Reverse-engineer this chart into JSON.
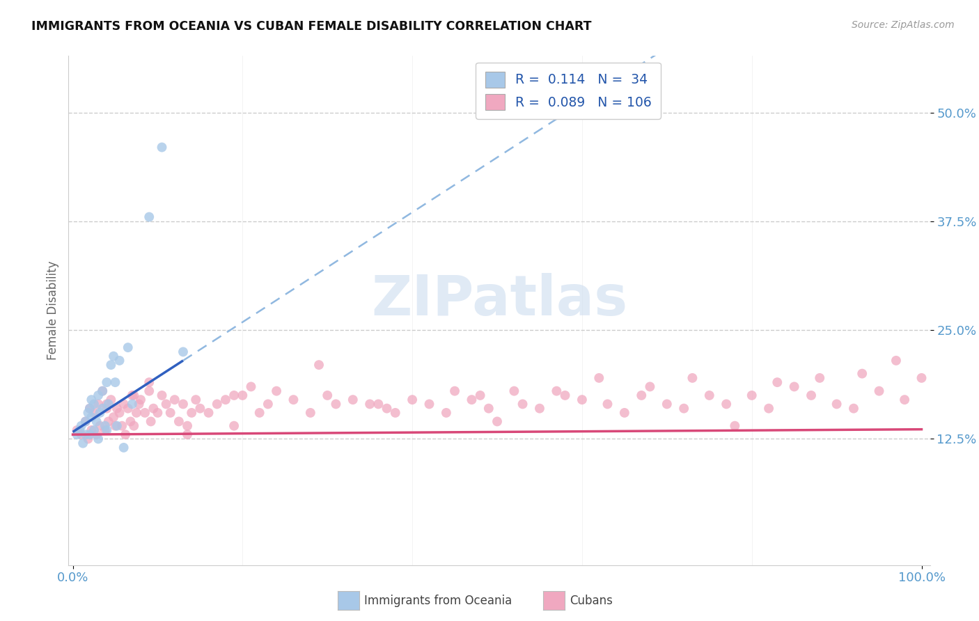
{
  "title": "IMMIGRANTS FROM OCEANIA VS CUBAN FEMALE DISABILITY CORRELATION CHART",
  "source": "Source: ZipAtlas.com",
  "ylabel": "Female Disability",
  "ytick_labels": [
    "12.5%",
    "25.0%",
    "37.5%",
    "50.0%"
  ],
  "ytick_values": [
    0.125,
    0.25,
    0.375,
    0.5
  ],
  "xlim": [
    -0.005,
    1.01
  ],
  "ylim": [
    -0.02,
    0.565
  ],
  "r_oceania": 0.114,
  "n_oceania": 34,
  "r_cubans": 0.089,
  "n_cubans": 106,
  "color_oceania": "#a8c8e8",
  "color_cubans": "#f0a8c0",
  "line_color_oceania": "#3060c0",
  "line_color_oceania_dash": "#90b8e0",
  "line_color_cubans": "#d84878",
  "legend_label_oceania": "Immigrants from Oceania",
  "legend_label_cubans": "Cubans",
  "watermark": "ZIPatlas",
  "background_color": "#ffffff",
  "scatter_oceania_x": [
    0.005,
    0.008,
    0.01,
    0.012,
    0.015,
    0.015,
    0.018,
    0.02,
    0.02,
    0.022,
    0.022,
    0.025,
    0.025,
    0.028,
    0.03,
    0.03,
    0.032,
    0.035,
    0.035,
    0.038,
    0.04,
    0.04,
    0.042,
    0.045,
    0.048,
    0.05,
    0.052,
    0.055,
    0.06,
    0.065,
    0.07,
    0.09,
    0.105,
    0.13
  ],
  "scatter_oceania_y": [
    0.13,
    0.135,
    0.14,
    0.12,
    0.145,
    0.13,
    0.155,
    0.13,
    0.16,
    0.15,
    0.17,
    0.165,
    0.135,
    0.145,
    0.175,
    0.125,
    0.155,
    0.18,
    0.16,
    0.14,
    0.19,
    0.135,
    0.165,
    0.21,
    0.22,
    0.19,
    0.14,
    0.215,
    0.115,
    0.23,
    0.165,
    0.38,
    0.46,
    0.225
  ],
  "scatter_cubans_x": [
    0.005,
    0.01,
    0.015,
    0.018,
    0.02,
    0.022,
    0.025,
    0.028,
    0.03,
    0.032,
    0.035,
    0.038,
    0.04,
    0.042,
    0.045,
    0.048,
    0.05,
    0.052,
    0.055,
    0.058,
    0.06,
    0.062,
    0.065,
    0.068,
    0.07,
    0.072,
    0.075,
    0.078,
    0.08,
    0.085,
    0.09,
    0.092,
    0.095,
    0.1,
    0.105,
    0.11,
    0.115,
    0.12,
    0.125,
    0.13,
    0.135,
    0.14,
    0.145,
    0.15,
    0.16,
    0.17,
    0.18,
    0.19,
    0.2,
    0.21,
    0.22,
    0.23,
    0.24,
    0.26,
    0.28,
    0.3,
    0.31,
    0.33,
    0.35,
    0.37,
    0.38,
    0.4,
    0.42,
    0.44,
    0.45,
    0.47,
    0.49,
    0.5,
    0.52,
    0.53,
    0.55,
    0.57,
    0.58,
    0.6,
    0.62,
    0.63,
    0.65,
    0.67,
    0.68,
    0.7,
    0.72,
    0.73,
    0.75,
    0.77,
    0.78,
    0.8,
    0.82,
    0.83,
    0.85,
    0.87,
    0.88,
    0.9,
    0.92,
    0.93,
    0.95,
    0.97,
    0.98,
    1.0,
    0.48,
    0.36,
    0.29,
    0.19,
    0.135,
    0.09,
    0.072,
    0.04
  ],
  "scatter_cubans_y": [
    0.135,
    0.13,
    0.145,
    0.125,
    0.16,
    0.135,
    0.155,
    0.13,
    0.165,
    0.14,
    0.18,
    0.135,
    0.16,
    0.145,
    0.17,
    0.15,
    0.14,
    0.16,
    0.155,
    0.14,
    0.165,
    0.13,
    0.16,
    0.145,
    0.175,
    0.14,
    0.155,
    0.165,
    0.17,
    0.155,
    0.18,
    0.145,
    0.16,
    0.155,
    0.175,
    0.165,
    0.155,
    0.17,
    0.145,
    0.165,
    0.14,
    0.155,
    0.17,
    0.16,
    0.155,
    0.165,
    0.17,
    0.14,
    0.175,
    0.185,
    0.155,
    0.165,
    0.18,
    0.17,
    0.155,
    0.175,
    0.165,
    0.17,
    0.165,
    0.16,
    0.155,
    0.17,
    0.165,
    0.155,
    0.18,
    0.17,
    0.16,
    0.145,
    0.18,
    0.165,
    0.16,
    0.18,
    0.175,
    0.17,
    0.195,
    0.165,
    0.155,
    0.175,
    0.185,
    0.165,
    0.16,
    0.195,
    0.175,
    0.165,
    0.14,
    0.175,
    0.16,
    0.19,
    0.185,
    0.175,
    0.195,
    0.165,
    0.16,
    0.2,
    0.18,
    0.215,
    0.17,
    0.195,
    0.175,
    0.165,
    0.21,
    0.175,
    0.13,
    0.19,
    0.175,
    0.165
  ]
}
